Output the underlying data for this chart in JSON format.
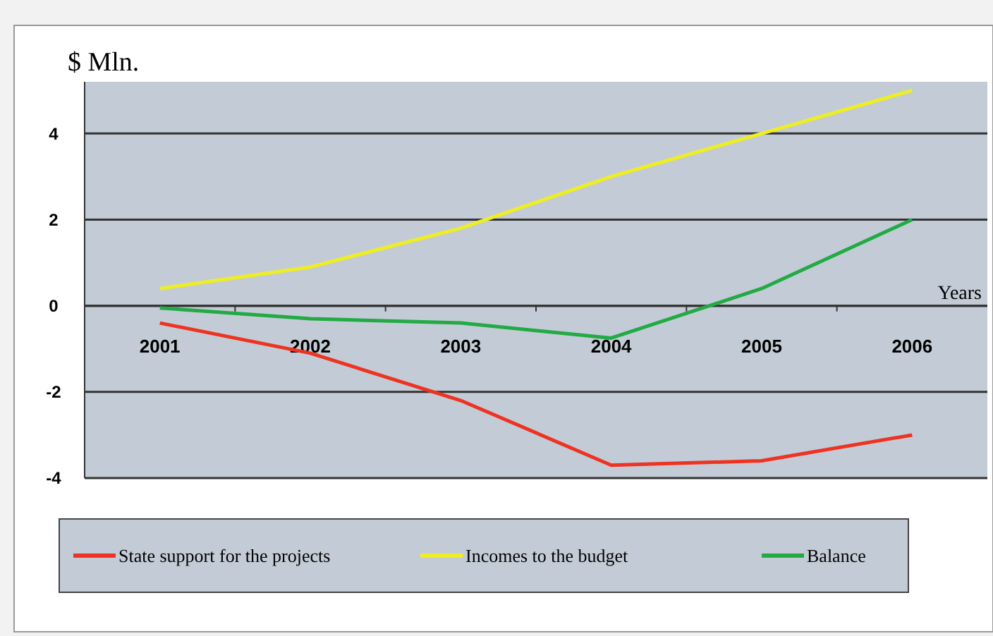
{
  "chart_data": {
    "type": "line",
    "ylabel": "$ Mln.",
    "xlabel": "Years",
    "categories": [
      "2001",
      "2002",
      "2003",
      "2004",
      "2005",
      "2006"
    ],
    "series": [
      {
        "name": "State support for the projects",
        "color": "#ee3322",
        "values": [
          -0.4,
          -1.1,
          -2.2,
          -3.7,
          -3.6,
          -3.0
        ]
      },
      {
        "name": "Incomes to the budget",
        "color": "#eeee22",
        "values": [
          0.4,
          0.9,
          1.8,
          3.0,
          4.0,
          5.0
        ]
      },
      {
        "name": "Balance",
        "color": "#22aa44",
        "values": [
          -0.05,
          -0.3,
          -0.4,
          -0.75,
          0.4,
          2.0
        ]
      }
    ],
    "ylim": [
      -4,
      5.2
    ],
    "yticks": [
      -4,
      -2,
      0,
      2,
      4
    ],
    "grid": "y",
    "legend": "bottom",
    "marker": "none",
    "line_style": "solid"
  }
}
